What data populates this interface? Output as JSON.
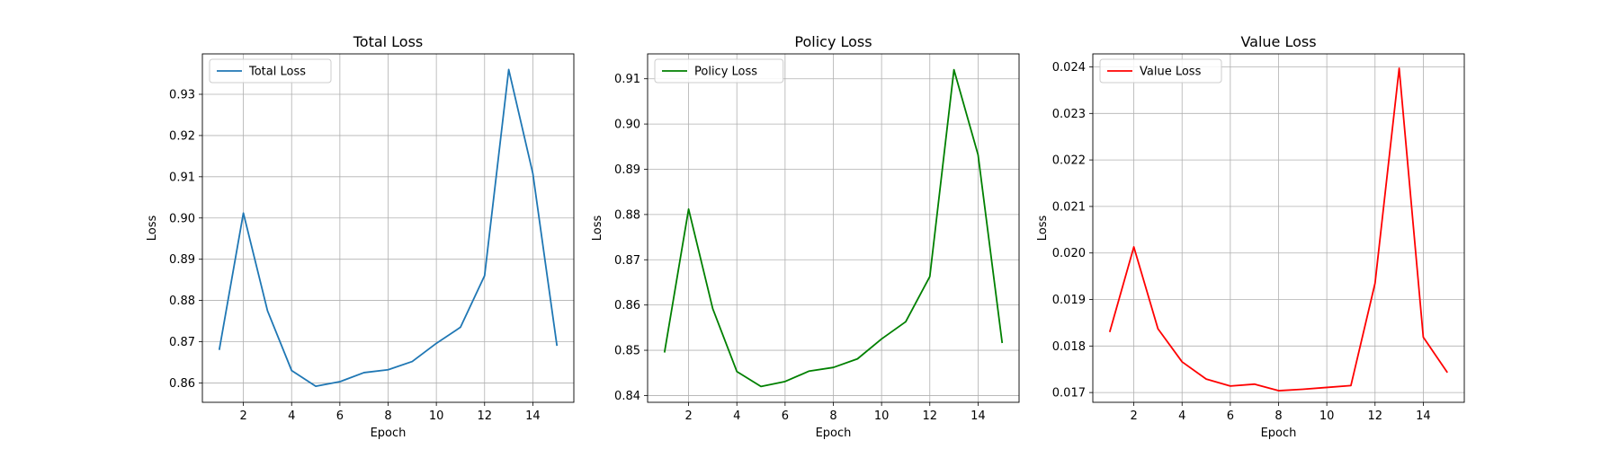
{
  "chart_data": [
    {
      "type": "line",
      "title": "Total Loss",
      "xlabel": "Epoch",
      "ylabel": "Loss",
      "xlim": [
        0.3,
        15.7
      ],
      "ylim": [
        0.8553,
        0.9398
      ],
      "xticks": [
        2,
        4,
        6,
        8,
        10,
        12,
        14
      ],
      "xtick_labels": [
        "2",
        "4",
        "6",
        "8",
        "10",
        "12",
        "14"
      ],
      "yticks": [
        0.86,
        0.87,
        0.88,
        0.89,
        0.9,
        0.91,
        0.92,
        0.93
      ],
      "ytick_labels": [
        "0.86",
        "0.87",
        "0.88",
        "0.89",
        "0.90",
        "0.91",
        "0.92",
        "0.93"
      ],
      "grid": true,
      "legend_position": "top-left",
      "series": [
        {
          "name": "Total Loss",
          "color": "#1f77b4",
          "x": [
            1,
            2,
            3,
            4,
            5,
            6,
            7,
            8,
            9,
            10,
            11,
            12,
            13,
            14,
            15
          ],
          "values": [
            0.868,
            0.9012,
            0.8775,
            0.863,
            0.8592,
            0.8603,
            0.8625,
            0.8632,
            0.8652,
            0.8696,
            0.8735,
            0.886,
            0.936,
            0.9108,
            0.869
          ]
        }
      ]
    },
    {
      "type": "line",
      "title": "Policy Loss",
      "xlabel": "Epoch",
      "ylabel": "Loss",
      "xlim": [
        0.3,
        15.7
      ],
      "ylim": [
        0.8385,
        0.9155
      ],
      "xticks": [
        2,
        4,
        6,
        8,
        10,
        12,
        14
      ],
      "xtick_labels": [
        "2",
        "4",
        "6",
        "8",
        "10",
        "12",
        "14"
      ],
      "yticks": [
        0.84,
        0.85,
        0.86,
        0.87,
        0.88,
        0.89,
        0.9,
        0.91
      ],
      "ytick_labels": [
        "0.84",
        "0.85",
        "0.86",
        "0.87",
        "0.88",
        "0.89",
        "0.90",
        "0.91"
      ],
      "grid": true,
      "legend_position": "top-left",
      "series": [
        {
          "name": "Policy Loss",
          "color": "#008000",
          "x": [
            1,
            2,
            3,
            4,
            5,
            6,
            7,
            8,
            9,
            10,
            11,
            12,
            13,
            14,
            15
          ],
          "values": [
            0.8495,
            0.8812,
            0.8592,
            0.8453,
            0.842,
            0.8431,
            0.8454,
            0.8462,
            0.8481,
            0.8525,
            0.8563,
            0.8663,
            0.912,
            0.8932,
            0.8516
          ]
        }
      ]
    },
    {
      "type": "line",
      "title": "Value Loss",
      "xlabel": "Epoch",
      "ylabel": "Loss",
      "xlim": [
        0.3,
        15.7
      ],
      "ylim": [
        0.01679,
        0.02428
      ],
      "xticks": [
        2,
        4,
        6,
        8,
        10,
        12,
        14
      ],
      "xtick_labels": [
        "2",
        "4",
        "6",
        "8",
        "10",
        "12",
        "14"
      ],
      "yticks": [
        0.017,
        0.018,
        0.019,
        0.02,
        0.021,
        0.022,
        0.023,
        0.024
      ],
      "ytick_labels": [
        "0.017",
        "0.018",
        "0.019",
        "0.020",
        "0.021",
        "0.022",
        "0.023",
        "0.024"
      ],
      "grid": true,
      "legend_position": "top-left",
      "series": [
        {
          "name": "Value Loss",
          "color": "#ff0000",
          "x": [
            1,
            2,
            3,
            4,
            5,
            6,
            7,
            8,
            9,
            10,
            11,
            12,
            13,
            14,
            15
          ],
          "values": [
            0.0183,
            0.02013,
            0.01837,
            0.01766,
            0.01729,
            0.01714,
            0.01718,
            0.01704,
            0.01707,
            0.01711,
            0.01715,
            0.01935,
            0.02397,
            0.01819,
            0.01743
          ]
        }
      ]
    }
  ]
}
